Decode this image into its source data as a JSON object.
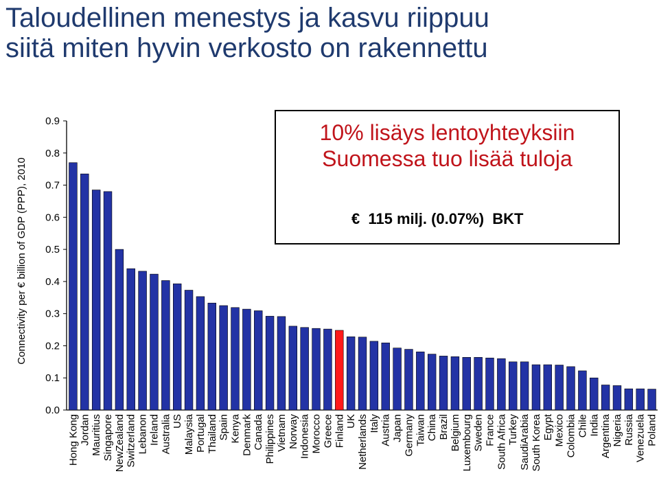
{
  "title": {
    "line1": "Taloudellinen menestys ja kasvu riippuu",
    "line2": "siitä miten hyvin verkosto on rakennettu"
  },
  "callout": {
    "line1": "10% lisäys lentoyhteyksiin",
    "line2": "Suomessa tuo lisää tuloja",
    "detail_currency": "€",
    "detail_value": "115 milj. (0.07%)",
    "detail_unit": "BKT"
  },
  "colors": {
    "bar": "#2333a5",
    "highlight": "#ff1a1a",
    "title": "#1f3a6e",
    "callout_title": "#c0141b"
  },
  "chart_data": {
    "type": "bar",
    "ylabel": "Connectivity per € billion of GDP (PPP), 2010",
    "ylim": [
      0,
      0.9
    ],
    "yticks": [
      "0.0",
      "0.1",
      "0.2",
      "0.3",
      "0.4",
      "0.5",
      "0.6",
      "0.7",
      "0.8",
      "0.9"
    ],
    "grid": false,
    "highlight": "Finland",
    "categories": [
      "Hong Kong",
      "Jordan",
      "Mauritius",
      "Singapore",
      "NewZealand",
      "Switzerland",
      "Lebanon",
      "Ireland",
      "Australia",
      "US",
      "Malaysia",
      "Portugal",
      "Thailand",
      "Spain",
      "Kenya",
      "Denmark",
      "Canada",
      "Philippines",
      "Vietnam",
      "Norway",
      "Indonesia",
      "Morocco",
      "Greece",
      "Finland",
      "UK",
      "Netherlands",
      "Italy",
      "Austria",
      "Japan",
      "Germany",
      "Taiwan",
      "China",
      "Brazil",
      "Belgium",
      "Luxembourg",
      "Sweden",
      "France",
      "South Africa",
      "Turkey",
      "SaudiArabia",
      "South Korea",
      "Egypt",
      "Mexico",
      "Colombia",
      "Chile",
      "India",
      "Argentina",
      "Nigeria",
      "Russia",
      "Venezuela",
      "Poland"
    ],
    "values": [
      0.77,
      0.735,
      0.685,
      0.68,
      0.5,
      0.44,
      0.432,
      0.423,
      0.403,
      0.393,
      0.373,
      0.353,
      0.333,
      0.325,
      0.319,
      0.314,
      0.309,
      0.292,
      0.291,
      0.261,
      0.257,
      0.254,
      0.252,
      0.248,
      0.228,
      0.227,
      0.214,
      0.209,
      0.193,
      0.189,
      0.181,
      0.174,
      0.168,
      0.166,
      0.164,
      0.164,
      0.162,
      0.16,
      0.15,
      0.15,
      0.141,
      0.141,
      0.14,
      0.135,
      0.122,
      0.1,
      0.078,
      0.076,
      0.066,
      0.066,
      0.065
    ]
  }
}
